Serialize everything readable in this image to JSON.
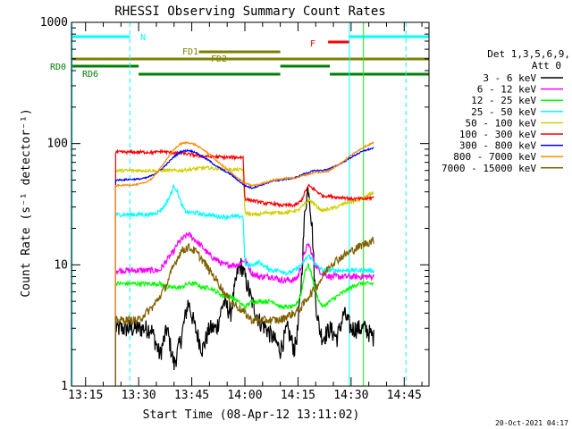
{
  "chart_data": {
    "type": "line",
    "title": "RHESSI Observing Summary Count Rates",
    "xlabel": "Start Time (08-Apr-12 13:11:02)",
    "ylabel": "Count Rate (s⁻¹ detector⁻¹)",
    "yscale": "log",
    "ylim": [
      1,
      1000
    ],
    "y_ticks": [
      "1",
      "10",
      "100",
      "1000"
    ],
    "x_ticks": [
      "13:15",
      "13:30",
      "13:45",
      "14:00",
      "14:15",
      "14:30",
      "14:45"
    ],
    "x_tick_minutes": [
      15,
      30,
      45,
      60,
      75,
      90,
      105
    ],
    "x_range_minutes": [
      11.033,
      112
    ],
    "data_range_minutes": [
      23.5,
      96.5
    ],
    "legend_title": [
      "Det 1,3,5,6,9,",
      "Att 0"
    ],
    "legend_position": "right",
    "series": [
      {
        "name": "3 - 6 keV",
        "color": "#000000",
        "x": [
          23.5,
          33.5,
          36,
          38,
          40,
          42,
          44,
          46,
          48,
          50,
          52,
          54,
          56,
          57,
          58,
          59,
          60,
          62,
          64,
          66,
          68,
          70,
          72,
          74,
          75,
          76,
          77,
          78,
          79,
          80,
          81,
          82,
          84,
          86,
          88,
          90,
          92,
          94,
          96.5
        ],
        "y": [
          3,
          3,
          1.8,
          3,
          1.5,
          2.5,
          5,
          3,
          2,
          3,
          3,
          5,
          4,
          6,
          9,
          10,
          8,
          5,
          3.5,
          3,
          2.5,
          2,
          3,
          2,
          3,
          8,
          30,
          45,
          20,
          5,
          3,
          2.5,
          3,
          2.5,
          4,
          3,
          3,
          3,
          2.5
        ]
      },
      {
        "name": "6 - 12 keV",
        "color": "#ff00ff",
        "x": [
          23.5,
          33.5,
          35,
          36,
          37,
          38,
          39,
          40,
          41,
          42,
          44,
          46,
          48,
          50,
          52,
          54,
          56,
          58,
          60,
          62,
          64,
          66,
          68,
          70,
          72,
          74,
          75,
          76,
          77,
          78,
          79,
          80,
          81,
          82,
          84,
          86,
          88,
          90,
          92,
          94,
          96.5
        ],
        "y": [
          9,
          9,
          9,
          9,
          10,
          11,
          12,
          13,
          15,
          16,
          18,
          16,
          14,
          12,
          11,
          10,
          10,
          10,
          11,
          8.5,
          8,
          8,
          8,
          7.5,
          7.5,
          7.5,
          8,
          10,
          13,
          15,
          12,
          10,
          9,
          8.5,
          8,
          8,
          8,
          8,
          8,
          8,
          8
        ]
      },
      {
        "name": "12 - 25 keV",
        "color": "#00ff00",
        "x": [
          23.5,
          33.5,
          36,
          38,
          40,
          42,
          44,
          46,
          48,
          50,
          52,
          54,
          56,
          58,
          60,
          62,
          64,
          66,
          68,
          70,
          72,
          74,
          75,
          76,
          77,
          78,
          79,
          80,
          81,
          82,
          84,
          86,
          88,
          90,
          92,
          94,
          96.5
        ],
        "y": [
          7,
          7,
          7,
          6.5,
          6.5,
          6.5,
          7,
          7,
          6.5,
          6.5,
          6,
          5.5,
          5.5,
          5,
          4.5,
          5,
          5,
          5,
          5,
          4.5,
          4.5,
          4.5,
          5,
          6,
          9,
          10,
          8,
          6,
          5,
          4.5,
          5,
          5.5,
          6,
          6.5,
          7,
          7,
          7
        ]
      },
      {
        "name": "25 - 50 keV",
        "color": "#00ffff",
        "x": [
          23.5,
          33.5,
          35,
          36,
          37,
          38,
          39,
          40,
          41,
          42,
          43,
          44,
          46,
          48,
          50,
          52,
          54,
          56,
          58,
          59.5,
          60,
          62,
          64,
          66,
          68,
          70,
          72,
          74,
          75,
          76,
          77,
          78,
          79,
          80,
          81,
          82,
          84,
          86,
          88,
          90,
          92,
          94,
          96.5
        ],
        "y": [
          26,
          26,
          27,
          28,
          30,
          33,
          38,
          45,
          40,
          32,
          28,
          27,
          27,
          26,
          26,
          25,
          25,
          25,
          25,
          25,
          10,
          10,
          10.5,
          9.5,
          9,
          9,
          8.5,
          9,
          9.5,
          10,
          11,
          12,
          11,
          10,
          9.5,
          9,
          9,
          9,
          9,
          9,
          9,
          9,
          9
        ]
      },
      {
        "name": "50 - 100 keV",
        "color": "#d0d000",
        "x": [
          23.5,
          33.5,
          34,
          35,
          36,
          37,
          38,
          39,
          40,
          42,
          44,
          46,
          48,
          50,
          52,
          54,
          56,
          58,
          59.5,
          60,
          62,
          64,
          66,
          68,
          70,
          72,
          74,
          75,
          76,
          77,
          78,
          79,
          80,
          81,
          82,
          84,
          86,
          88,
          90,
          92,
          94,
          96.5
        ],
        "y": [
          60,
          60,
          60,
          59,
          60,
          60,
          60,
          60,
          60,
          60,
          61,
          62,
          63,
          63,
          62,
          62,
          61,
          61,
          61,
          27,
          26,
          26,
          27,
          27,
          27,
          27,
          28,
          28,
          30,
          32,
          34,
          33,
          31,
          29,
          28,
          29,
          30,
          32,
          33,
          34,
          36,
          40
        ]
      },
      {
        "name": "100 - 300 keV",
        "color": "#ff0000",
        "x": [
          23.5,
          33.5,
          34,
          35,
          36,
          37,
          38,
          40,
          42,
          44,
          46,
          48,
          50,
          52,
          54,
          56,
          58,
          59.5,
          60,
          62,
          64,
          66,
          68,
          70,
          72,
          74,
          75,
          76,
          77,
          78,
          79,
          80,
          81,
          82,
          84,
          86,
          88,
          90,
          92,
          94,
          96.5
        ],
        "y": [
          85,
          85,
          84,
          85,
          86,
          86,
          85,
          84,
          83,
          82,
          80,
          79,
          78,
          78,
          77,
          77,
          77,
          77,
          35,
          34,
          33,
          32,
          32,
          31,
          31,
          31,
          32,
          34,
          40,
          45,
          43,
          41,
          39,
          37,
          37,
          36,
          36,
          35,
          35,
          35,
          36
        ]
      },
      {
        "name": "300 - 800 keV",
        "color": "#0000ff",
        "x": [
          23.5,
          30,
          32,
          34,
          36,
          38,
          40,
          42,
          44,
          46,
          48,
          50,
          52,
          54,
          56,
          58,
          60,
          62,
          64,
          66,
          68,
          70,
          72,
          74,
          76,
          78,
          80,
          82,
          84,
          86,
          88,
          90,
          92,
          94,
          96.5
        ],
        "y": [
          50,
          51,
          52,
          55,
          60,
          68,
          78,
          86,
          88,
          85,
          78,
          72,
          65,
          60,
          56,
          50,
          45,
          43,
          45,
          47,
          49,
          50,
          51,
          52,
          55,
          58,
          60,
          60,
          62,
          66,
          71,
          77,
          83,
          88,
          92
        ]
      },
      {
        "name": "800 - 7000 keV",
        "color": "#ff8c00",
        "x": [
          23.5,
          30,
          32,
          34,
          36,
          38,
          40,
          42,
          44,
          46,
          48,
          50,
          52,
          54,
          56,
          58,
          60,
          62,
          64,
          66,
          68,
          70,
          72,
          74,
          76,
          78,
          80,
          82,
          84,
          86,
          88,
          90,
          92,
          94,
          96.5
        ],
        "y": [
          45,
          46,
          48,
          52,
          62,
          75,
          90,
          100,
          102,
          98,
          90,
          82,
          72,
          65,
          58,
          52,
          47,
          45,
          46,
          48,
          50,
          51,
          52,
          52,
          54,
          56,
          58,
          58,
          60,
          66,
          72,
          80,
          88,
          95,
          102
        ]
      },
      {
        "name": "7000 - 15000 keV",
        "color": "#806000",
        "x": [
          23.5,
          30,
          32,
          34,
          36,
          38,
          40,
          42,
          44,
          46,
          48,
          50,
          52,
          54,
          56,
          58,
          60,
          62,
          64,
          66,
          68,
          70,
          72,
          74,
          76,
          78,
          80,
          82,
          84,
          86,
          88,
          90,
          92,
          94,
          96.5
        ],
        "y": [
          3.5,
          3.5,
          4,
          4.5,
          5.5,
          7,
          10,
          13,
          14,
          13,
          11,
          9,
          7.5,
          6,
          5,
          4.5,
          4,
          3.5,
          3.5,
          3.5,
          3.5,
          3.5,
          3.8,
          4,
          4.5,
          5.5,
          6.5,
          8,
          10,
          11,
          12,
          13,
          14,
          15,
          16
        ]
      }
    ],
    "flag_bars": [
      {
        "label": "N",
        "color": "#00ffff",
        "segments": [
          [
            11.033,
            27.5
          ],
          [
            89.5,
            112
          ]
        ]
      },
      {
        "label": "F",
        "color": "#ff0000",
        "segments": [
          [
            83.5,
            89.5
          ]
        ]
      },
      {
        "label": "FD1",
        "color": "#808000",
        "segments": [
          [
            47,
            70
          ]
        ]
      },
      {
        "label": "FD2",
        "color": "#808000",
        "segments": [
          [
            11.033,
            112
          ]
        ]
      },
      {
        "label": "RD0",
        "color": "#008000",
        "segments": [
          [
            11.033,
            30
          ],
          [
            70,
            84
          ]
        ]
      },
      {
        "label": "RD6",
        "color": "#008000",
        "segments": [
          [
            30,
            70
          ],
          [
            84,
            112
          ]
        ]
      }
    ],
    "vertical_lines": [
      {
        "style": "solid",
        "color": "#00ffff",
        "x": [
          11.2,
          89.5
        ]
      },
      {
        "style": "dashed",
        "color": "#00ffff",
        "x": [
          27.5,
          105.5
        ]
      },
      {
        "style": "solid",
        "color": "#00ff00",
        "x": [
          93.5
        ]
      }
    ]
  },
  "timestamp": "20-Oct-2021 04:17"
}
